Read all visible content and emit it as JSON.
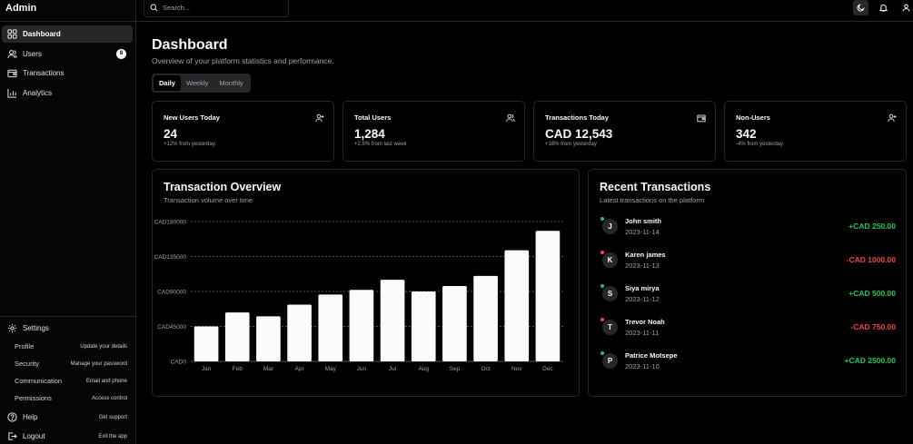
{
  "app": {
    "brand": "Admin"
  },
  "sidebar": {
    "items": [
      {
        "label": "Dashboard",
        "icon": "grid-icon",
        "active": true
      },
      {
        "label": "Users",
        "icon": "users-icon",
        "badge": "8"
      },
      {
        "label": "Transactions",
        "icon": "wallet-icon"
      },
      {
        "label": "Analytics",
        "icon": "bar-chart-icon"
      }
    ],
    "settings": {
      "label": "Settings",
      "items": [
        {
          "label": "Profile",
          "desc": "Update your details"
        },
        {
          "label": "Security",
          "desc": "Manage your password"
        },
        {
          "label": "Communication",
          "desc": "Email and phone"
        },
        {
          "label": "Permissions",
          "desc": "Access control"
        }
      ]
    },
    "help": {
      "label": "Help",
      "desc": "Get support"
    },
    "logout": {
      "label": "Logout",
      "desc": "Exit the app"
    }
  },
  "topbar": {
    "search_placeholder": "Search..."
  },
  "main": {
    "title": "Dashboard",
    "subtitle": "Overview of your platform statistics and performance.",
    "tabs": [
      {
        "label": "Daily",
        "active": true
      },
      {
        "label": "Weekly"
      },
      {
        "label": "Monthly"
      }
    ],
    "stats": [
      {
        "title": "New Users Today",
        "value": "24",
        "note": "+12% from yesterday",
        "icon": "user-plus-icon"
      },
      {
        "title": "Total Users",
        "value": "1,284",
        "note": "+2.5% from last week",
        "icon": "users-icon"
      },
      {
        "title": "Transactions Today",
        "value": "CAD 12,543",
        "note": "+18% from yesterday",
        "icon": "wallet-icon"
      },
      {
        "title": "Non-Users",
        "value": "342",
        "note": "-4% from yesterday",
        "icon": "user-plus-icon"
      }
    ]
  },
  "overview": {
    "title": "Transaction Overview",
    "subtitle": "Transaction volume over time"
  },
  "chart_data": {
    "type": "bar",
    "categories": [
      "Jan",
      "Feb",
      "Mar",
      "Apr",
      "May",
      "Jun",
      "Jul",
      "Aug",
      "Sep",
      "Oct",
      "Nov",
      "Dec"
    ],
    "values": [
      45000,
      63000,
      58000,
      73000,
      86000,
      92000,
      105000,
      90000,
      97000,
      110000,
      143000,
      168000
    ],
    "yticks": [
      "CAD0",
      "CAD45000",
      "CAD90000",
      "CAD135000",
      "CAD180000"
    ],
    "ylim": [
      0,
      180000
    ],
    "grid": true,
    "bar_color": "#fafafa"
  },
  "recent": {
    "title": "Recent Transactions",
    "subtitle": "Latest transactions on the platform",
    "items": [
      {
        "initial": "J",
        "name": "John smith",
        "date": "2023-11-14",
        "amount": "+CAD 250.00",
        "direction": "in"
      },
      {
        "initial": "K",
        "name": "Karen james",
        "date": "2023-11-13",
        "amount": "-CAD 1000.00",
        "direction": "out"
      },
      {
        "initial": "S",
        "name": "Siya mirya",
        "date": "2023-11-12",
        "amount": "+CAD 500.00",
        "direction": "in"
      },
      {
        "initial": "T",
        "name": "Trevor Noah",
        "date": "2023-11-11",
        "amount": "-CAD 750.00",
        "direction": "out"
      },
      {
        "initial": "P",
        "name": "Patrice Motsepe",
        "date": "2023-11-10",
        "amount": "+CAD 2500.00",
        "direction": "in"
      }
    ],
    "colors": {
      "in": "#22c55e",
      "out": "#ef4444"
    }
  }
}
